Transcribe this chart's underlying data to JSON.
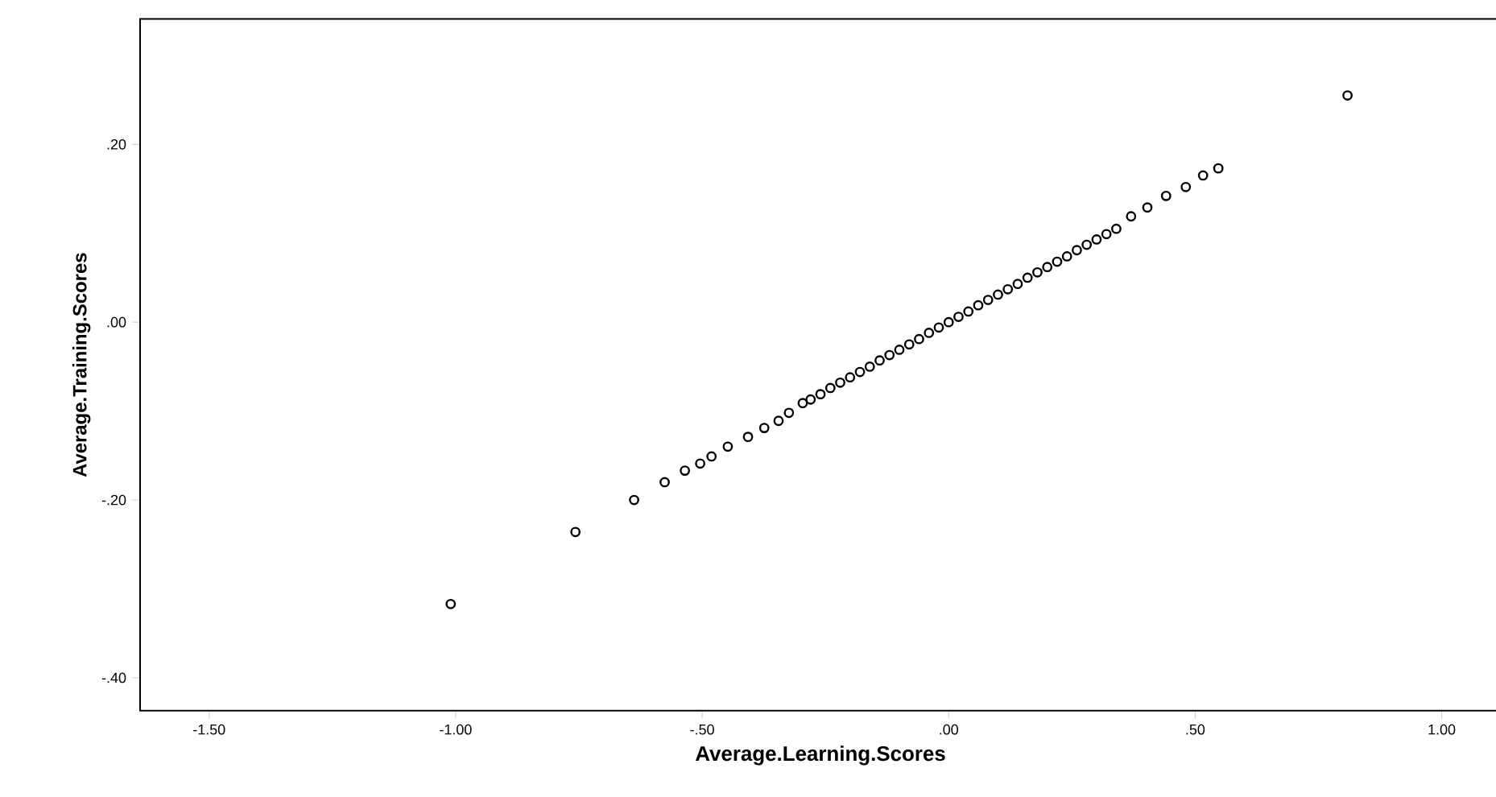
{
  "chart_data": {
    "type": "scatter",
    "xlabel": "Average.Learning.Scores",
    "ylabel": "Average.Training.Scores",
    "x": [
      -1.01,
      -0.757,
      -0.638,
      -0.576,
      -0.535,
      -0.504,
      -0.481,
      -0.448,
      -0.407,
      -0.374,
      -0.345,
      -0.324,
      -0.296,
      -0.28,
      -0.26,
      -0.24,
      -0.22,
      -0.2,
      -0.18,
      -0.16,
      -0.14,
      -0.12,
      -0.1,
      -0.08,
      -0.06,
      -0.04,
      -0.02,
      0.0,
      0.02,
      0.04,
      0.06,
      0.08,
      0.1,
      0.12,
      0.14,
      0.16,
      0.18,
      0.2,
      0.22,
      0.24,
      0.26,
      0.28,
      0.3,
      0.32,
      0.34,
      0.37,
      0.403,
      0.441,
      0.481,
      0.516,
      0.547,
      0.809
    ],
    "values": [
      -0.317,
      -0.236,
      -0.2,
      -0.18,
      -0.167,
      -0.159,
      -0.151,
      -0.14,
      -0.129,
      -0.119,
      -0.111,
      -0.102,
      -0.091,
      -0.087,
      -0.081,
      -0.074,
      -0.068,
      -0.062,
      -0.056,
      -0.05,
      -0.043,
      -0.037,
      -0.031,
      -0.025,
      -0.019,
      -0.012,
      -0.006,
      0.0,
      0.006,
      0.012,
      0.019,
      0.025,
      0.031,
      0.037,
      0.043,
      0.05,
      0.056,
      0.062,
      0.068,
      0.074,
      0.081,
      0.087,
      0.093,
      0.099,
      0.105,
      0.119,
      0.129,
      0.142,
      0.152,
      0.165,
      0.173,
      0.255
    ],
    "color": "#000000",
    "marker": "circle",
    "xlim": [
      -1.64,
      1.12
    ],
    "ylim": [
      -0.437,
      0.341
    ],
    "xticks": [
      {
        "value": -1.5,
        "label": "-1.50"
      },
      {
        "value": -1.0,
        "label": "-1.00"
      },
      {
        "value": -0.5,
        "label": "-.50"
      },
      {
        "value": 0,
        "label": ".00"
      },
      {
        "value": 0.5,
        "label": ".50"
      },
      {
        "value": 1.0,
        "label": "1.00"
      }
    ],
    "yticks": [
      {
        "value": -0.4,
        "label": "-.40"
      },
      {
        "value": -0.2,
        "label": "-.20"
      },
      {
        "value": 0,
        "label": ".00"
      },
      {
        "value": 0.2,
        "label": ".20"
      }
    ],
    "grid": false
  }
}
